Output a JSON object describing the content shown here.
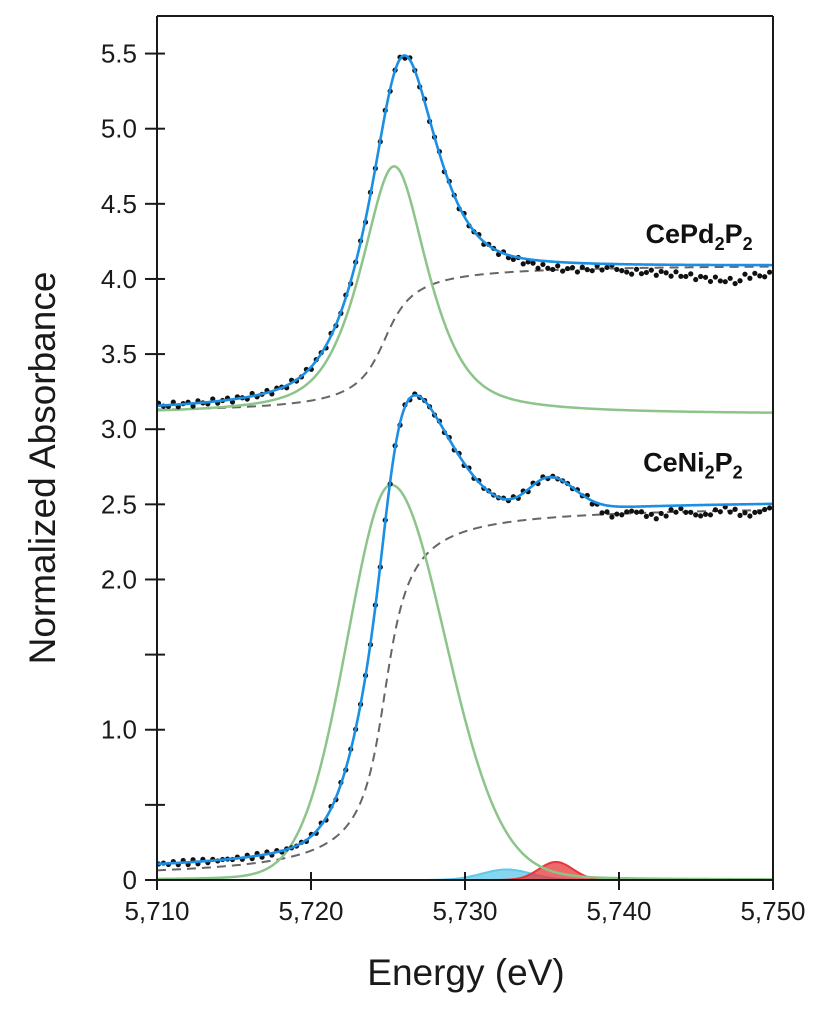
{
  "chart_data": {
    "type": "line",
    "title": "",
    "xlabel": "Energy (eV)",
    "ylabel": "Normalized Absorbance",
    "xlim": [
      5710,
      5750
    ],
    "ylim": [
      0,
      5.75
    ],
    "xticks": [
      5710,
      5720,
      5730,
      5740,
      5750
    ],
    "xtick_labels": [
      "5,710",
      "5,720",
      "5,730",
      "5,740",
      "5,750"
    ],
    "yticks": [
      0,
      0.5,
      1.0,
      1.5,
      2.0,
      2.5,
      3.0,
      3.5,
      4.0,
      4.5,
      5.0,
      5.5
    ],
    "ytick_labels": [
      "0",
      "",
      "1.0",
      "",
      "2.0",
      "2.5",
      "3.0",
      "3.5",
      "4.0",
      "4.5",
      "5.0",
      "5.5"
    ],
    "grid": false,
    "legend": "none",
    "colors": {
      "data": "#111111",
      "fit": "#1a8fe3",
      "peak": "#8dc48a",
      "edge": "#666666",
      "cyan_peak": "#5ec8ea",
      "red_peak": "#e8373a",
      "axis": "#1a1a1a"
    },
    "annotations": [
      {
        "text": "CePd",
        "sub1": "2",
        "mid": "P",
        "sub2": "2",
        "x": 5745.2,
        "y": 4.24
      },
      {
        "text": "CeNi",
        "sub1": "2",
        "mid": "P",
        "sub2": "2",
        "x": 5744.8,
        "y": 2.72
      }
    ],
    "spectra": [
      {
        "name": "CePd2P2",
        "offset": 3.1,
        "fit": {
          "name": "fit",
          "peak_x": 5725.9,
          "peak_y": 5.6,
          "edge_step": 1.0
        },
        "white_line": {
          "name": "Gaussian-Lorentzian peak",
          "center": 5725.4,
          "height": 1.65
        },
        "edge": {
          "name": "arctangent edge",
          "center": 5724.8,
          "height": 1.0
        },
        "data_points_description": "experimental data, points every ~0.15 eV"
      },
      {
        "name": "CeNi2P2",
        "offset": 0.0,
        "fit": {
          "name": "fit",
          "peak_x": 5726.0,
          "peak_y": 3.5,
          "edge_step": 2.5
        },
        "white_line": {
          "name": "Gaussian peak",
          "center": 5725.2,
          "height": 2.63
        },
        "edge": {
          "name": "arctangent edge",
          "center": 5724.8,
          "height": 2.5
        },
        "small_peaks": [
          {
            "name": "cyan peak",
            "center": 5732.7,
            "height": 0.07
          },
          {
            "name": "red peak",
            "center": 5735.9,
            "height": 0.12
          }
        ]
      }
    ]
  }
}
